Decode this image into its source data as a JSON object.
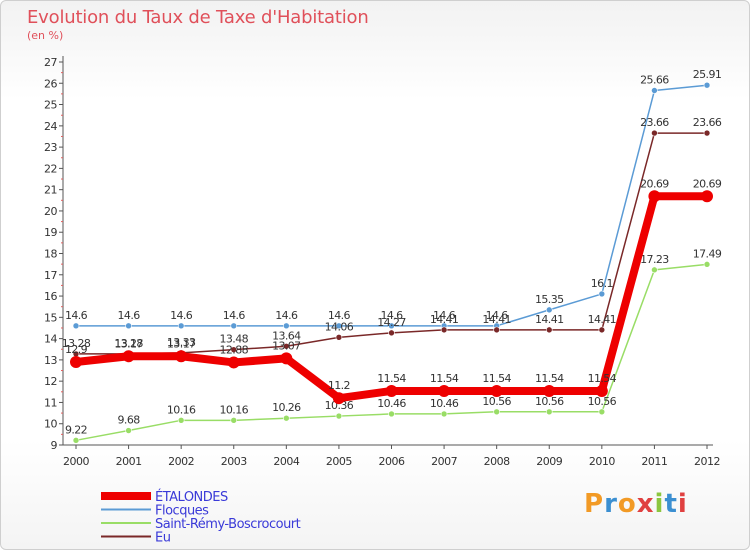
{
  "header": {
    "title": "Evolution du Taux de Taxe d'Habitation",
    "subtitle": "(en %)"
  },
  "logo": {
    "text": "Proxiti",
    "letters": [
      "P",
      "r",
      "o",
      "x",
      "i",
      "t",
      "i"
    ],
    "colors": [
      "#f29a25",
      "#3b8fd1",
      "#f29a25",
      "#e04040",
      "#8cc63f",
      "#3b8fd1",
      "#e04040"
    ]
  },
  "chart_data": {
    "type": "line",
    "title": "Evolution du Taux de Taxe d'Habitation",
    "subtitle": "(en %)",
    "xlabel": "",
    "ylabel": "",
    "ylim": [
      9,
      27
    ],
    "yticks": [
      9,
      10,
      11,
      12,
      13,
      14,
      15,
      16,
      17,
      18,
      19,
      20,
      21,
      22,
      23,
      24,
      25,
      26,
      27
    ],
    "categories": [
      "2000",
      "2001",
      "2002",
      "2003",
      "2004",
      "2005",
      "2006",
      "2007",
      "2008",
      "2009",
      "2010",
      "2011",
      "2012"
    ],
    "grid": false,
    "legend_position": "bottom-left",
    "series": [
      {
        "name": "Flocques",
        "color": "#5b9bd5",
        "values": [
          14.6,
          14.6,
          14.6,
          14.6,
          14.6,
          14.6,
          14.6,
          14.6,
          14.6,
          15.35,
          16.1,
          25.66,
          25.91
        ],
        "labels": [
          "14.6",
          "14.6",
          "14.6",
          "14.6",
          "14.6",
          "14.6",
          "14.6",
          "14.6",
          "14.6",
          "15.35",
          "16.1",
          "25.66",
          "25.91"
        ]
      },
      {
        "name": "Saint-Rémy-Boscrocourt",
        "color": "#99dd66",
        "values": [
          9.22,
          9.68,
          10.16,
          10.16,
          10.26,
          10.36,
          10.46,
          10.46,
          10.56,
          10.56,
          10.56,
          17.23,
          17.49
        ],
        "labels": [
          "9.22",
          "9.68",
          "10.16",
          "10.16",
          "10.26",
          "10.36",
          "10.46",
          "10.46",
          "10.56",
          "10.56",
          "10.56",
          "17.23",
          "17.49"
        ]
      },
      {
        "name": "Eu",
        "color": "#7a2828",
        "values": [
          13.28,
          13.28,
          13.33,
          13.48,
          13.64,
          14.06,
          14.27,
          14.41,
          14.41,
          14.41,
          14.41,
          23.66,
          23.66
        ],
        "labels": [
          "13.28",
          "13.28",
          "13.33",
          "13.48",
          "13.64",
          "14.06",
          "14.27",
          "14.41",
          "14.41",
          "14.41",
          "14.41",
          "23.66",
          "23.66"
        ]
      },
      {
        "name": "ÉTALONDES",
        "color": "#ee0000",
        "values": [
          12.9,
          13.17,
          13.17,
          12.88,
          13.07,
          11.2,
          11.54,
          11.54,
          11.54,
          11.54,
          11.54,
          20.69,
          20.69
        ],
        "labels": [
          "12.9",
          "13.17",
          "13.17",
          "12.88",
          "13.07",
          "11.2",
          "11.54",
          "11.54",
          "11.54",
          "11.54",
          "11.54",
          "20.69",
          "20.69"
        ]
      }
    ],
    "legend": [
      "ÉTALONDES",
      "Flocques",
      "Saint-Rémy-Boscrocourt",
      "Eu"
    ]
  }
}
